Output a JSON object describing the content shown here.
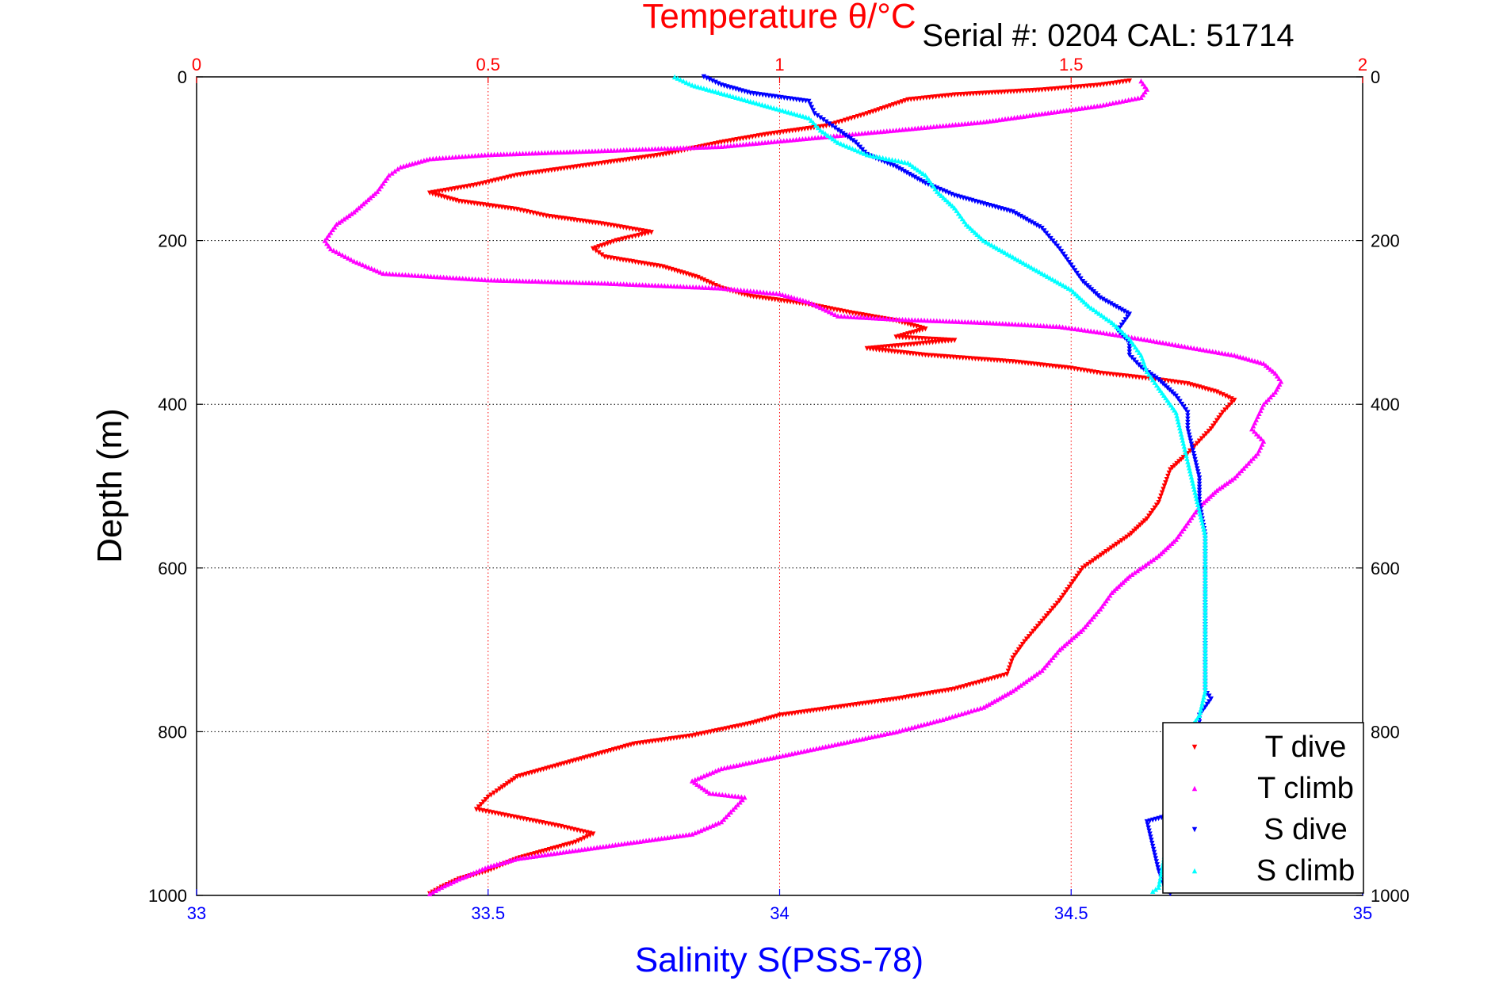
{
  "header": {
    "serial_text": "Serial #: 0204   CAL: 51714"
  },
  "chart_data": {
    "type": "scatter",
    "title": "Temperature θ/°C",
    "xlabel": "Salinity S(PSS-78)",
    "ylabel": "Depth (m)",
    "x_top": {
      "label": "Temperature θ/°C",
      "range": [
        0,
        2
      ],
      "ticks": [
        "0",
        "0.5",
        "1",
        "1.5",
        "2"
      ],
      "color": "#ff0000"
    },
    "x_bottom": {
      "label": "Salinity S(PSS-78)",
      "range": [
        33,
        35
      ],
      "ticks": [
        "33",
        "33.5",
        "34",
        "34.5",
        "35"
      ],
      "color": "#0000ff"
    },
    "y": {
      "range": [
        0,
        1000
      ],
      "reversed": true,
      "ticks": [
        "0",
        "200",
        "400",
        "600",
        "800",
        "1000"
      ]
    },
    "grid": true,
    "legend_position": "bottom-right",
    "series": [
      {
        "name": "T dive",
        "axis": "temperature",
        "color": "#ff0000",
        "marker": "triangle-down",
        "points": [
          [
            1.6,
            5
          ],
          [
            1.55,
            10
          ],
          [
            1.45,
            16
          ],
          [
            1.3,
            22
          ],
          [
            1.22,
            28
          ],
          [
            1.15,
            45
          ],
          [
            1.08,
            60
          ],
          [
            0.98,
            70
          ],
          [
            0.9,
            80
          ],
          [
            0.8,
            95
          ],
          [
            0.7,
            105
          ],
          [
            0.55,
            120
          ],
          [
            0.48,
            132
          ],
          [
            0.4,
            142
          ],
          [
            0.45,
            152
          ],
          [
            0.55,
            162
          ],
          [
            0.6,
            170
          ],
          [
            0.7,
            180
          ],
          [
            0.78,
            190
          ],
          [
            0.72,
            200
          ],
          [
            0.68,
            210
          ],
          [
            0.7,
            220
          ],
          [
            0.8,
            232
          ],
          [
            0.86,
            245
          ],
          [
            0.9,
            258
          ],
          [
            0.95,
            268
          ],
          [
            1.05,
            278
          ],
          [
            1.12,
            288
          ],
          [
            1.2,
            298
          ],
          [
            1.25,
            308
          ],
          [
            1.2,
            318
          ],
          [
            1.3,
            322
          ],
          [
            1.15,
            332
          ],
          [
            1.25,
            340
          ],
          [
            1.4,
            348
          ],
          [
            1.5,
            356
          ],
          [
            1.55,
            362
          ],
          [
            1.6,
            366
          ],
          [
            1.65,
            370
          ],
          [
            1.7,
            375
          ],
          [
            1.75,
            385
          ],
          [
            1.78,
            395
          ],
          [
            1.76,
            410
          ],
          [
            1.74,
            430
          ],
          [
            1.72,
            445
          ],
          [
            1.7,
            460
          ],
          [
            1.67,
            480
          ],
          [
            1.66,
            500
          ],
          [
            1.65,
            520
          ],
          [
            1.63,
            540
          ],
          [
            1.6,
            560
          ],
          [
            1.56,
            580
          ],
          [
            1.52,
            600
          ],
          [
            1.5,
            620
          ],
          [
            1.48,
            640
          ],
          [
            1.45,
            665
          ],
          [
            1.42,
            690
          ],
          [
            1.4,
            710
          ],
          [
            1.39,
            730
          ],
          [
            1.3,
            748
          ],
          [
            1.2,
            760
          ],
          [
            1.1,
            770
          ],
          [
            1.0,
            780
          ],
          [
            0.95,
            790
          ],
          [
            0.85,
            805
          ],
          [
            0.75,
            815
          ],
          [
            0.7,
            825
          ],
          [
            0.65,
            835
          ],
          [
            0.6,
            845
          ],
          [
            0.55,
            855
          ],
          [
            0.52,
            870
          ],
          [
            0.5,
            880
          ],
          [
            0.48,
            895
          ],
          [
            0.55,
            905
          ],
          [
            0.62,
            915
          ],
          [
            0.68,
            925
          ],
          [
            0.65,
            935
          ],
          [
            0.6,
            945
          ],
          [
            0.55,
            955
          ],
          [
            0.5,
            970
          ],
          [
            0.45,
            980
          ],
          [
            0.42,
            990
          ],
          [
            0.4,
            998
          ]
        ]
      },
      {
        "name": "T climb",
        "axis": "temperature",
        "color": "#ff00ff",
        "marker": "triangle-up",
        "points": [
          [
            1.62,
            5
          ],
          [
            1.63,
            15
          ],
          [
            1.62,
            25
          ],
          [
            1.55,
            35
          ],
          [
            1.45,
            45
          ],
          [
            1.35,
            55
          ],
          [
            1.2,
            65
          ],
          [
            1.05,
            75
          ],
          [
            0.9,
            85
          ],
          [
            0.7,
            90
          ],
          [
            0.5,
            95
          ],
          [
            0.4,
            100
          ],
          [
            0.35,
            110
          ],
          [
            0.33,
            120
          ],
          [
            0.31,
            140
          ],
          [
            0.27,
            165
          ],
          [
            0.24,
            180
          ],
          [
            0.23,
            190
          ],
          [
            0.22,
            200
          ],
          [
            0.23,
            210
          ],
          [
            0.27,
            225
          ],
          [
            0.32,
            240
          ],
          [
            0.5,
            248
          ],
          [
            0.7,
            252
          ],
          [
            0.9,
            258
          ],
          [
            1.0,
            265
          ],
          [
            1.05,
            275
          ],
          [
            1.08,
            285
          ],
          [
            1.1,
            292
          ],
          [
            1.2,
            296
          ],
          [
            1.35,
            300
          ],
          [
            1.48,
            305
          ],
          [
            1.55,
            312
          ],
          [
            1.62,
            320
          ],
          [
            1.7,
            330
          ],
          [
            1.78,
            340
          ],
          [
            1.83,
            350
          ],
          [
            1.85,
            362
          ],
          [
            1.86,
            372
          ],
          [
            1.85,
            385
          ],
          [
            1.83,
            400
          ],
          [
            1.82,
            415
          ],
          [
            1.81,
            430
          ],
          [
            1.83,
            445
          ],
          [
            1.82,
            460
          ],
          [
            1.8,
            475
          ],
          [
            1.78,
            490
          ],
          [
            1.75,
            505
          ],
          [
            1.72,
            525
          ],
          [
            1.7,
            545
          ],
          [
            1.68,
            565
          ],
          [
            1.65,
            585
          ],
          [
            1.6,
            610
          ],
          [
            1.57,
            630
          ],
          [
            1.55,
            650
          ],
          [
            1.52,
            675
          ],
          [
            1.48,
            700
          ],
          [
            1.45,
            725
          ],
          [
            1.4,
            750
          ],
          [
            1.35,
            770
          ],
          [
            1.28,
            785
          ],
          [
            1.2,
            800
          ],
          [
            1.1,
            815
          ],
          [
            1.0,
            830
          ],
          [
            0.9,
            845
          ],
          [
            0.85,
            860
          ],
          [
            0.88,
            875
          ],
          [
            0.94,
            880
          ],
          [
            0.92,
            895
          ],
          [
            0.9,
            910
          ],
          [
            0.85,
            925
          ],
          [
            0.75,
            935
          ],
          [
            0.65,
            945
          ],
          [
            0.55,
            955
          ],
          [
            0.5,
            965
          ],
          [
            0.45,
            980
          ],
          [
            0.42,
            990
          ],
          [
            0.4,
            998
          ]
        ]
      },
      {
        "name": "S dive",
        "axis": "salinity",
        "color": "#0000ff",
        "marker": "triangle-down",
        "points": [
          [
            33.87,
            0
          ],
          [
            33.9,
            10
          ],
          [
            33.95,
            20
          ],
          [
            34.05,
            30
          ],
          [
            34.06,
            45
          ],
          [
            34.08,
            55
          ],
          [
            34.1,
            65
          ],
          [
            34.13,
            80
          ],
          [
            34.15,
            95
          ],
          [
            34.2,
            110
          ],
          [
            34.25,
            130
          ],
          [
            34.3,
            145
          ],
          [
            34.35,
            155
          ],
          [
            34.4,
            165
          ],
          [
            34.45,
            185
          ],
          [
            34.48,
            210
          ],
          [
            34.5,
            230
          ],
          [
            34.52,
            250
          ],
          [
            34.55,
            270
          ],
          [
            34.6,
            290
          ],
          [
            34.58,
            310
          ],
          [
            34.6,
            325
          ],
          [
            34.6,
            340
          ],
          [
            34.62,
            355
          ],
          [
            34.65,
            370
          ],
          [
            34.68,
            390
          ],
          [
            34.7,
            410
          ],
          [
            34.7,
            430
          ],
          [
            34.71,
            460
          ],
          [
            34.72,
            490
          ],
          [
            34.72,
            520
          ],
          [
            34.73,
            560
          ],
          [
            34.73,
            600
          ],
          [
            34.73,
            650
          ],
          [
            34.73,
            700
          ],
          [
            34.73,
            750
          ],
          [
            34.74,
            760
          ],
          [
            34.72,
            780
          ],
          [
            34.72,
            800
          ],
          [
            34.7,
            830
          ],
          [
            34.68,
            900
          ],
          [
            34.63,
            910
          ],
          [
            34.65,
            970
          ],
          [
            34.66,
            990
          ],
          [
            34.67,
            998
          ]
        ]
      },
      {
        "name": "S climb",
        "axis": "salinity",
        "color": "#00ffff",
        "marker": "triangle-up",
        "points": [
          [
            33.82,
            0
          ],
          [
            33.85,
            10
          ],
          [
            33.9,
            20
          ],
          [
            33.95,
            30
          ],
          [
            34.0,
            40
          ],
          [
            34.05,
            50
          ],
          [
            34.07,
            65
          ],
          [
            34.1,
            80
          ],
          [
            34.15,
            95
          ],
          [
            34.22,
            105
          ],
          [
            34.25,
            120
          ],
          [
            34.27,
            140
          ],
          [
            34.3,
            160
          ],
          [
            34.32,
            180
          ],
          [
            34.35,
            200
          ],
          [
            34.4,
            220
          ],
          [
            34.45,
            240
          ],
          [
            34.5,
            260
          ],
          [
            34.53,
            280
          ],
          [
            34.57,
            300
          ],
          [
            34.6,
            320
          ],
          [
            34.62,
            340
          ],
          [
            34.63,
            360
          ],
          [
            34.65,
            380
          ],
          [
            34.68,
            410
          ],
          [
            34.69,
            440
          ],
          [
            34.7,
            470
          ],
          [
            34.71,
            500
          ],
          [
            34.72,
            530
          ],
          [
            34.73,
            560
          ],
          [
            34.73,
            600
          ],
          [
            34.73,
            650
          ],
          [
            34.73,
            700
          ],
          [
            34.73,
            750
          ],
          [
            34.72,
            780
          ],
          [
            34.7,
            800
          ],
          [
            34.65,
            990
          ],
          [
            34.64,
            995
          ]
        ]
      }
    ]
  }
}
